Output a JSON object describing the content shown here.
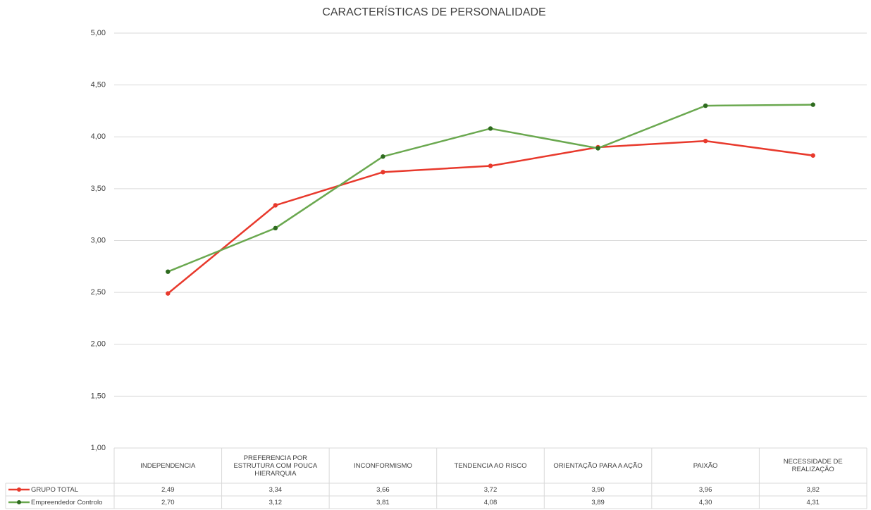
{
  "chart_data": {
    "type": "line",
    "title": "CARACTERÍSTICAS DE PERSONALIDADE",
    "categories": [
      "INDEPENDENCIA",
      "PREFERENCIA POR ESTRUTURA COM POUCA HIERARQUIA",
      "INCONFORMISMO",
      "TENDENCIA AO RISCO",
      "ORIENTAÇÃO PARA A AÇÃO",
      "PAIXÃO",
      "NECESSIDADE DE REALIZAÇÃO"
    ],
    "series": [
      {
        "name": "GRUPO TOTAL",
        "color": "#e8392c",
        "marker_color": "#e8392c",
        "values": [
          2.49,
          3.34,
          3.66,
          3.72,
          3.9,
          3.96,
          3.82
        ],
        "value_labels": [
          "2,49",
          "3,34",
          "3,66",
          "3,72",
          "3,90",
          "3,96",
          "3,82"
        ]
      },
      {
        "name": "Empreendedor Controlo",
        "color": "#6aa84f",
        "marker_color": "#2e6b1f",
        "values": [
          2.7,
          3.12,
          3.81,
          4.08,
          3.89,
          4.3,
          4.31
        ],
        "value_labels": [
          "2,70",
          "3,12",
          "3,81",
          "4,08",
          "3,89",
          "4,30",
          "4,31"
        ]
      }
    ],
    "ylim": [
      1,
      5
    ],
    "yticks": [
      {
        "value": 1,
        "label": "1,00"
      },
      {
        "value": 1.5,
        "label": "1,50"
      },
      {
        "value": 2,
        "label": "2,00"
      },
      {
        "value": 2.5,
        "label": "2,50"
      },
      {
        "value": 3,
        "label": "3,00"
      },
      {
        "value": 3.5,
        "label": "3,50"
      },
      {
        "value": 4,
        "label": "4,00"
      },
      {
        "value": 4.5,
        "label": "4,50"
      },
      {
        "value": 5,
        "label": "5,00"
      }
    ],
    "grid": true
  }
}
